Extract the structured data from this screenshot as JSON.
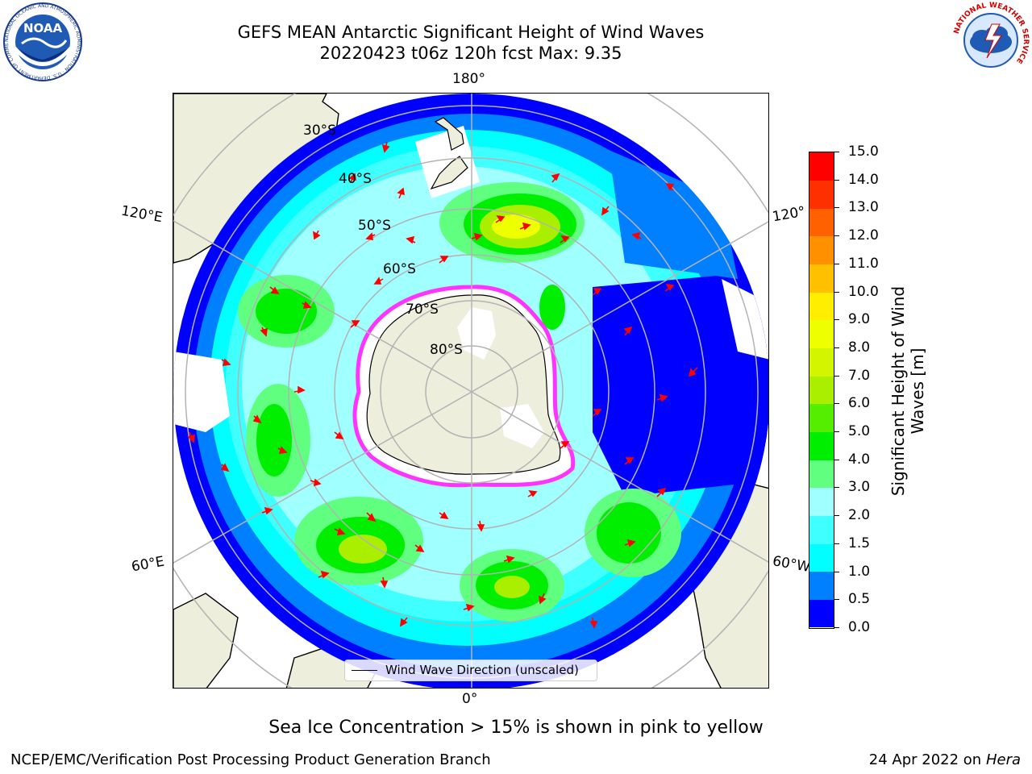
{
  "header": {
    "title_line1": "GEFS MEAN Antarctic Significant Height of Wind Waves",
    "title_line2": "20220423 t06z 120h fcst   Max: 9.35"
  },
  "logos": {
    "left": {
      "name": "noaa",
      "text": "NOAA",
      "ring_text": "NATIONAL OCEANIC AND ATMOSPHERIC ADMINISTRATION · U.S. DEPARTMENT OF COMMERCE"
    },
    "right": {
      "name": "national-weather-service",
      "ring_text": "NATIONAL WEATHER SERVICE"
    }
  },
  "map": {
    "projection": "south polar stereographic",
    "longitude_labels": {
      "top": "180°",
      "bottom": "0°",
      "left_upper": "120°E",
      "left_lower": "60°E",
      "right_upper": "120°",
      "right_lower": "60°W"
    },
    "latitude_labels": [
      "30°S",
      "40°S",
      "50°S",
      "60°S",
      "70°S",
      "80°S"
    ],
    "legend_label": "Wind Wave Direction (unscaled)",
    "colors": {
      "land": "#eeeedc",
      "arrow": "#ff0000",
      "graticule": "#b3b3b3",
      "ice_edge": "#ff33ff"
    }
  },
  "colorbar": {
    "label": "Significant Height of Wind Waves [m]",
    "ticks": [
      "0.0",
      "0.5",
      "1.0",
      "1.5",
      "2.0",
      "3.0",
      "4.0",
      "5.0",
      "6.0",
      "7.0",
      "8.0",
      "9.0",
      "10.0",
      "11.0",
      "12.0",
      "13.0",
      "14.0",
      "15.0"
    ],
    "colors": [
      "#0000ff",
      "#0080ff",
      "#00ffff",
      "#40ffff",
      "#a0ffff",
      "#60ff80",
      "#00ee00",
      "#55ee00",
      "#aaee00",
      "#d4f500",
      "#eeff00",
      "#ffee00",
      "#ffc000",
      "#ff9000",
      "#ff6000",
      "#ff3000",
      "#ff0000"
    ]
  },
  "footer": {
    "note": "Sea Ice Concentration > 15% is shown in pink to yellow",
    "left": "NCEP/EMC/Verification Post Processing Product Generation Branch",
    "right_prefix": "24 Apr 2022 on ",
    "right_machine": "Hera"
  }
}
